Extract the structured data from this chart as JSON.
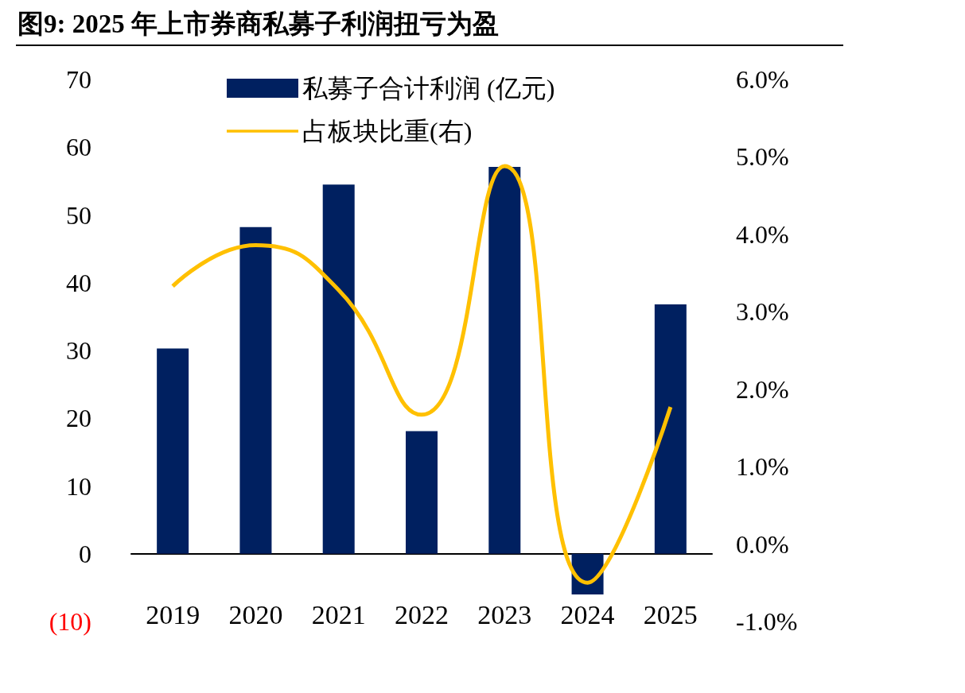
{
  "chart_data": {
    "type": "bar",
    "title": "图9:  2025 年上市券商私募子利润扭亏为盈",
    "categories": [
      "2019",
      "2020",
      "2021",
      "2022",
      "2023",
      "2024",
      "2025"
    ],
    "series": [
      {
        "name": "私募子合计利润 (亿元)",
        "color": "#002060",
        "values": [
          30.3,
          48.2,
          54.5,
          18.1,
          57.1,
          -6.0,
          36.8
        ]
      },
      {
        "name": "占板块比重(右)",
        "type": "line",
        "axis": "y2",
        "color": "#ffc000",
        "values": [
          3.33,
          3.86,
          3.28,
          1.67,
          4.88,
          -0.5,
          1.77
        ]
      }
    ],
    "ylim": [
      -10,
      70
    ],
    "yticks": [
      {
        "value": -10,
        "label": "(10)"
      },
      0,
      10,
      20,
      30,
      40,
      50,
      60,
      70
    ],
    "y2lim": [
      -1,
      6
    ],
    "y2ticks": [
      {
        "value": -1,
        "label": "-1.0%"
      },
      {
        "value": 0,
        "label": "0.0%"
      },
      {
        "value": 1,
        "label": "1.0%"
      },
      {
        "value": 2,
        "label": "2.0%"
      },
      {
        "value": 3,
        "label": "3.0%"
      },
      {
        "value": 4,
        "label": "4.0%"
      },
      {
        "value": 5,
        "label": "5.0%"
      },
      {
        "value": 6,
        "label": "6.0%"
      }
    ],
    "grid": false,
    "legend": "top",
    "marker": "none"
  }
}
